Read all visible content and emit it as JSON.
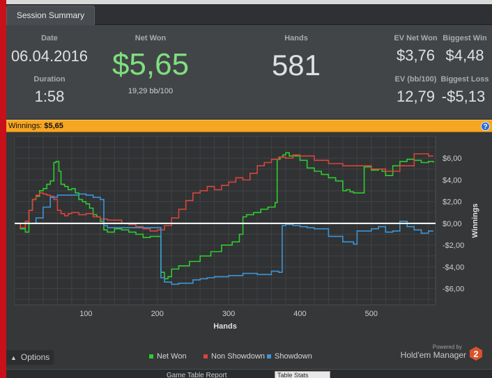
{
  "tab": {
    "label": "Session Summary"
  },
  "summary": {
    "date_label": "Date",
    "date_value": "06.04.2016",
    "duration_label": "Duration",
    "duration_value": "1:58",
    "netwon_label": "Net Won",
    "netwon_value": "$5,65",
    "netwon_sub": "19,29 bb/100",
    "hands_label": "Hands",
    "hands_value": "581",
    "ev_netwon_label": "EV Net Won",
    "ev_netwon_value": "$3,76",
    "biggest_win_label": "Biggest Win",
    "biggest_win_value": "$4,48",
    "ev_bb_label": "EV (bb/100)",
    "ev_bb_value": "12,79",
    "biggest_loss_label": "Biggest Loss",
    "biggest_loss_value": "-$5,13",
    "accent_green": "#7fe07f"
  },
  "winnings_bar": {
    "label": "Winnings:",
    "value": "$5,65",
    "help_icon": "help-icon",
    "color": "#f6a623"
  },
  "options": {
    "label": "Options",
    "icon": "chevron-up-icon"
  },
  "branding": {
    "powered": "Powered by",
    "name": "Hold'em Manager",
    "logo_text": "2"
  },
  "bottom": {
    "text": "Game Table Report",
    "box": "Table Stats"
  },
  "chart_data": {
    "type": "line",
    "xlabel": "Hands",
    "ylabel": "Winnings",
    "xlim": [
      0,
      590
    ],
    "ylim": [
      -7.5,
      8
    ],
    "x_ticks": [
      "100",
      "200",
      "300",
      "400",
      "500"
    ],
    "x_tick_values": [
      100,
      200,
      300,
      400,
      500
    ],
    "y_ticks": [
      "$6,00",
      "$4,00",
      "$2,00",
      "$0,00",
      "-$2,00",
      "-$4,00",
      "-$6,00"
    ],
    "y_tick_values": [
      6,
      4,
      2,
      0,
      -2,
      -4,
      -6
    ],
    "legend": "bottom-center",
    "grid": true,
    "series": [
      {
        "name": "Net Won",
        "color": "#2ecc2e",
        "x": [
          0,
          8,
          15,
          20,
          25,
          30,
          35,
          40,
          45,
          50,
          55,
          58,
          62,
          65,
          70,
          75,
          80,
          85,
          90,
          95,
          100,
          105,
          110,
          115,
          120,
          125,
          130,
          140,
          150,
          160,
          170,
          180,
          190,
          200,
          205,
          210,
          215,
          220,
          230,
          245,
          260,
          275,
          290,
          305,
          315,
          320,
          325,
          335,
          345,
          355,
          365,
          368,
          372,
          376,
          380,
          385,
          390,
          400,
          410,
          420,
          430,
          440,
          450,
          460,
          465,
          470,
          475,
          480,
          490,
          500,
          510,
          515,
          520,
          530,
          540,
          550,
          560,
          570,
          580,
          587
        ],
        "y": [
          0,
          -0.5,
          -0.8,
          1.2,
          2.2,
          2.5,
          3.0,
          3.2,
          3.6,
          3.9,
          5.6,
          5.7,
          4.8,
          3.6,
          3.4,
          3.1,
          3.2,
          2.8,
          2.2,
          2.0,
          1.8,
          1.4,
          0.8,
          0.6,
          0.2,
          -0.6,
          -0.8,
          -0.5,
          -0.6,
          -0.8,
          -1.0,
          -1.3,
          -1.2,
          -1.2,
          -4.5,
          -5.1,
          -4.9,
          -4.2,
          -3.9,
          -3.5,
          -3.0,
          -2.6,
          -2.0,
          -1.7,
          -1.0,
          0.6,
          0.8,
          1.0,
          1.3,
          1.5,
          1.9,
          5.9,
          6.1,
          6.3,
          6.5,
          6.2,
          6.2,
          5.8,
          5.1,
          4.8,
          4.5,
          4.2,
          3.9,
          3.0,
          3.1,
          2.9,
          2.8,
          2.8,
          5.2,
          4.9,
          5.0,
          4.8,
          4.4,
          5.3,
          5.7,
          5.9,
          5.8,
          5.6,
          5.7,
          5.6
        ]
      },
      {
        "name": "Non Showdown",
        "color": "#d9453b",
        "x": [
          0,
          8,
          15,
          20,
          25,
          30,
          35,
          40,
          45,
          50,
          55,
          60,
          65,
          70,
          75,
          80,
          90,
          100,
          110,
          120,
          130,
          140,
          150,
          160,
          170,
          180,
          190,
          200,
          210,
          220,
          230,
          240,
          250,
          260,
          270,
          280,
          290,
          300,
          310,
          320,
          330,
          340,
          350,
          360,
          370,
          380,
          390,
          400,
          420,
          440,
          460,
          480,
          500,
          520,
          540,
          560,
          580,
          587
        ],
        "y": [
          0,
          -0.4,
          0.2,
          1.2,
          2.2,
          2.6,
          2.8,
          2.7,
          2.6,
          2.5,
          2.2,
          1.2,
          0.9,
          0.7,
          0.9,
          1.0,
          0.8,
          0.9,
          0.6,
          0.4,
          0.3,
          0.3,
          0.0,
          -0.1,
          -0.3,
          -0.5,
          -0.7,
          -0.6,
          -0.2,
          0.5,
          1.3,
          2.1,
          2.8,
          3.0,
          3.4,
          3.1,
          3.5,
          3.8,
          4.2,
          4.0,
          4.6,
          5.3,
          5.6,
          5.9,
          6.1,
          6.0,
          6.3,
          6.2,
          5.8,
          5.5,
          5.3,
          5.3,
          5.0,
          4.8,
          5.3,
          6.4,
          6.2,
          6.2
        ]
      },
      {
        "name": "Showdown",
        "color": "#3d95d6",
        "x": [
          0,
          15,
          30,
          40,
          50,
          60,
          80,
          90,
          100,
          110,
          120,
          125,
          130,
          150,
          170,
          190,
          200,
          205,
          210,
          220,
          230,
          250,
          260,
          270,
          280,
          300,
          320,
          340,
          360,
          370,
          375,
          380,
          390,
          400,
          410,
          420,
          440,
          460,
          475,
          480,
          500,
          510,
          520,
          530,
          540,
          550,
          560,
          570,
          580,
          587
        ],
        "y": [
          0,
          0.0,
          0.5,
          1.5,
          2.4,
          2.6,
          2.6,
          2.7,
          2.6,
          2.4,
          2.2,
          -0.2,
          -0.4,
          -0.4,
          -0.4,
          -0.4,
          -0.4,
          -5.0,
          -5.4,
          -5.6,
          -5.5,
          -5.2,
          -5.1,
          -5.0,
          -4.9,
          -4.8,
          -4.6,
          -4.7,
          -4.4,
          -4.5,
          -0.2,
          -0.1,
          -0.2,
          -0.3,
          -0.4,
          -0.5,
          -1.2,
          -1.7,
          -1.9,
          -0.7,
          -0.5,
          -0.3,
          -0.8,
          -0.7,
          0.2,
          -0.3,
          -0.6,
          -0.9,
          -0.7,
          -0.7
        ]
      }
    ]
  }
}
